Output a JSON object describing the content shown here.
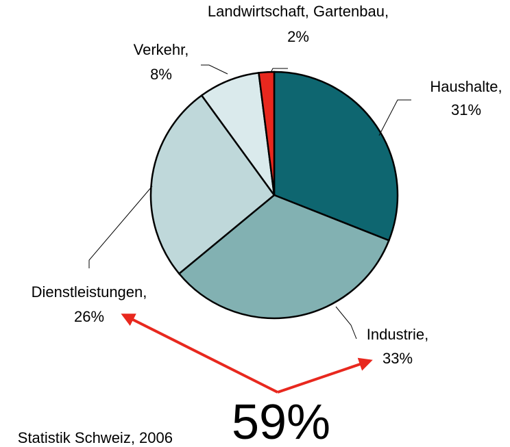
{
  "chart_data": {
    "type": "pie",
    "categories": [
      "Haushalte,",
      "Industrie,",
      "Dienstleistungen,",
      "Verkehr,",
      "Landwirtschaft, Gartenbau,"
    ],
    "values": [
      31,
      33,
      26,
      8,
      2
    ],
    "value_labels": [
      "31%",
      "33%",
      "26%",
      "8%",
      "2%"
    ],
    "colors": [
      "#0e6670",
      "#82b1b2",
      "#bfd8da",
      "#daeaec",
      "#e8281e"
    ],
    "annotation": "59%",
    "source": "Statistik Schweiz, 2006"
  }
}
